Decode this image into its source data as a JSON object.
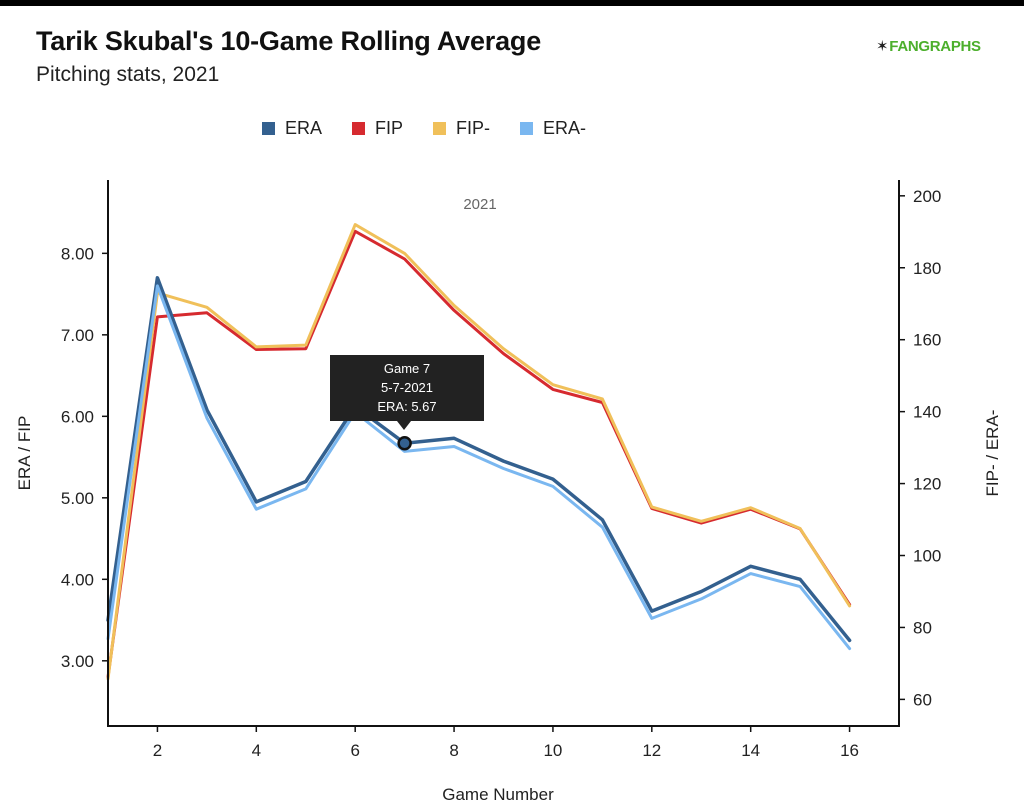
{
  "brand": {
    "name": "FANGRAPHS",
    "mark": "✶"
  },
  "chart_data": {
    "type": "line",
    "title": "Tarik Skubal's 10-Game Rolling Average",
    "subtitle": "Pitching stats, 2021",
    "annotation": "2021",
    "xlabel": "Game Number",
    "ylabel_left": "ERA / FIP",
    "ylabel_right": "FIP- / ERA-",
    "xlim": [
      1,
      17
    ],
    "x_ticks": [
      2,
      4,
      6,
      8,
      10,
      12,
      14,
      16
    ],
    "ylim_left": [
      2.2,
      8.9
    ],
    "y_ticks_left": [
      "3.00",
      "4.00",
      "5.00",
      "6.00",
      "7.00",
      "8.00"
    ],
    "ylim_right": [
      52.6,
      204.4
    ],
    "y_ticks_right": [
      "60",
      "80",
      "100",
      "120",
      "140",
      "160",
      "180",
      "200"
    ],
    "x": [
      1,
      2,
      3,
      4,
      5,
      6,
      7,
      8,
      9,
      10,
      11,
      12,
      13,
      14,
      15,
      16
    ],
    "series": [
      {
        "name": "FIP",
        "axis": "left",
        "color": "#d62a2f",
        "width": 3,
        "values": [
          2.8,
          7.22,
          7.27,
          6.82,
          6.83,
          8.27,
          7.93,
          7.3,
          6.77,
          6.33,
          6.17,
          4.87,
          4.69,
          4.86,
          4.62,
          3.69
        ]
      },
      {
        "name": "FIP-",
        "axis": "right",
        "color": "#f0c05a",
        "width": 3,
        "values": [
          65.7,
          173,
          169,
          158,
          158.5,
          192,
          184,
          169.5,
          157.5,
          147.5,
          143.5,
          113.5,
          109.5,
          113.3,
          107.5,
          86
        ]
      },
      {
        "name": "ERA",
        "axis": "left",
        "color": "#33608f",
        "width": 3.5,
        "values": [
          3.5,
          7.7,
          6.08,
          4.95,
          5.2,
          6.12,
          5.67,
          5.73,
          5.45,
          5.23,
          4.73,
          3.61,
          3.85,
          4.16,
          4.0,
          3.25
        ]
      },
      {
        "name": "ERA-",
        "axis": "left",
        "color": "#7ab7f0",
        "width": 3,
        "values": [
          3.27,
          7.6,
          5.98,
          4.86,
          5.11,
          6.05,
          5.57,
          5.63,
          5.36,
          5.14,
          4.64,
          3.52,
          3.76,
          4.07,
          3.91,
          3.15
        ]
      }
    ],
    "legend": [
      {
        "name": "ERA",
        "color": "#33608f"
      },
      {
        "name": "FIP",
        "color": "#d62a2f"
      },
      {
        "name": "FIP-",
        "color": "#f0c05a"
      },
      {
        "name": "ERA-",
        "color": "#7ab7f0"
      }
    ],
    "tooltip": {
      "game": 7,
      "era": 5.67,
      "line1": "Game 7",
      "line2": "5-7-2021",
      "line3": "ERA: 5.67"
    }
  }
}
